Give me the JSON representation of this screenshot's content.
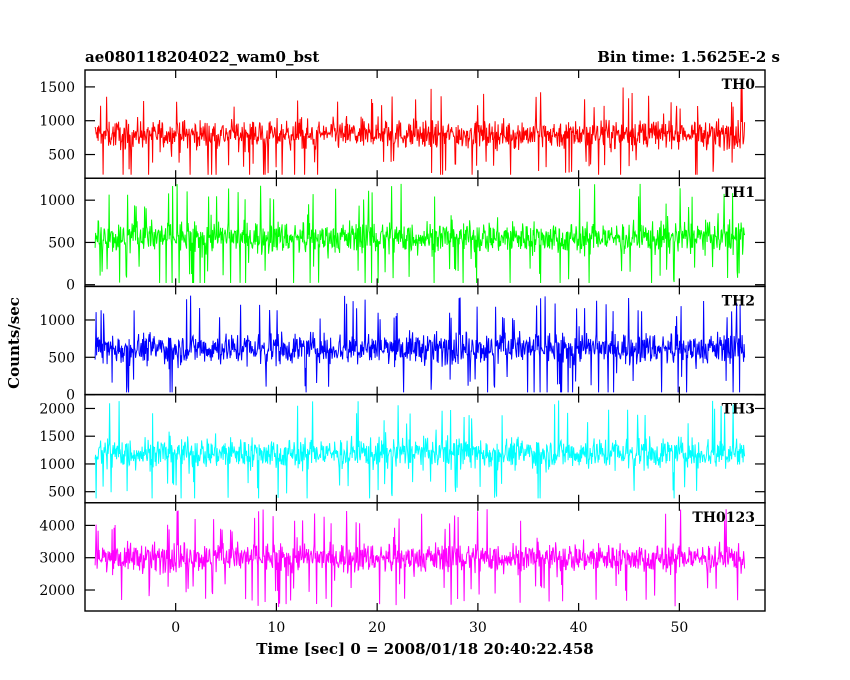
{
  "header": {
    "title": "ae080118204022_wam0_bst",
    "bin_time": "Bin time: 1.5625E-2 s"
  },
  "axes": {
    "xlabel": "Time [sec] 0 = 2008/01/18 20:40:22.458",
    "ylabel": "Counts/sec"
  },
  "chart_data": {
    "type": "line",
    "title": "ae080118204022_wam0_bst",
    "subtitle": "Bin time: 1.5625E-2 s",
    "xlabel": "Time [sec] 0 = 2008/01/18 20:40:22.458",
    "ylabel": "Counts/sec",
    "xlim": [
      -9,
      58.5
    ],
    "x_range_data": [
      -8,
      56.5
    ],
    "x_ticks": [
      0,
      10,
      20,
      30,
      40,
      50
    ],
    "panels": [
      {
        "name": "TH0",
        "color": "#ff0000",
        "ylim": [
          150,
          1750
        ],
        "y_ticks": [
          500,
          1000,
          1500
        ],
        "mean": 800,
        "spread": 420,
        "min": 200,
        "max": 1750
      },
      {
        "name": "TH1",
        "color": "#00ff00",
        "ylim": [
          -20,
          1260
        ],
        "y_ticks": [
          0,
          500,
          1000
        ],
        "mean": 560,
        "spread": 380,
        "min": 20,
        "max": 1260
      },
      {
        "name": "TH2",
        "color": "#0000ff",
        "ylim": [
          0,
          1450
        ],
        "y_ticks": [
          0,
          500,
          1000
        ],
        "mean": 620,
        "spread": 420,
        "min": 30,
        "max": 1450
      },
      {
        "name": "TH3",
        "color": "#00ffff",
        "ylim": [
          300,
          2250
        ],
        "y_ticks": [
          500,
          1000,
          1500,
          2000
        ],
        "mean": 1200,
        "spread": 560,
        "min": 380,
        "max": 2250
      },
      {
        "name": "TH0123",
        "color": "#ff00ff",
        "ylim": [
          1350,
          4700
        ],
        "y_ticks": [
          2000,
          3000,
          4000
        ],
        "mean": 3000,
        "spread": 900,
        "min": 1400,
        "max": 4700
      }
    ]
  }
}
